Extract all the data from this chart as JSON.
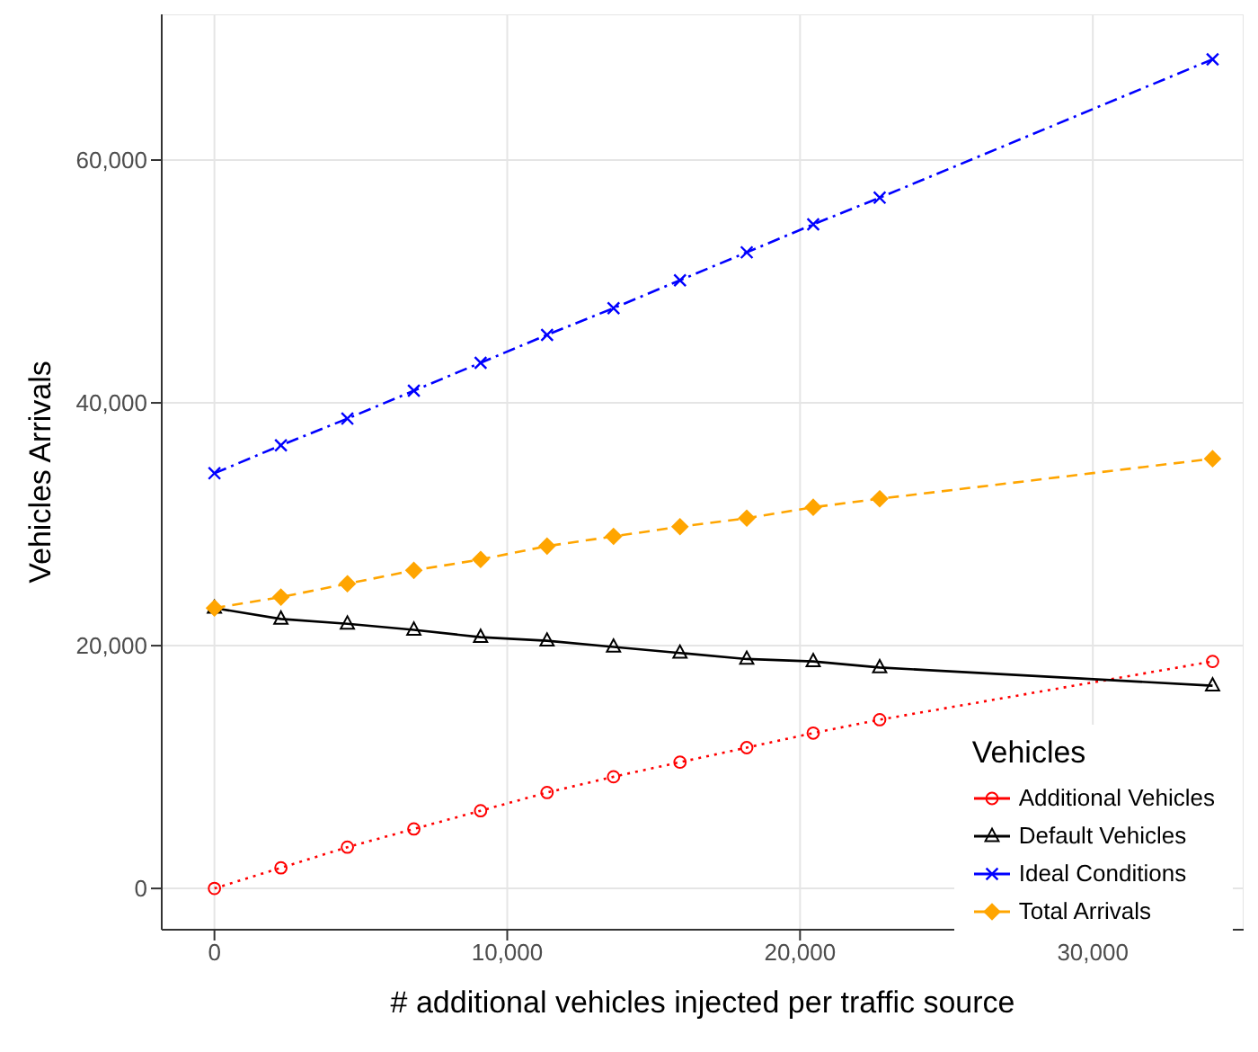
{
  "chart_data": {
    "type": "line",
    "xlabel": "# additional vehicles injected per traffic source",
    "ylabel": "Vehicles Arrivals",
    "legend_title": "Vehicles",
    "x": [
      0,
      2270,
      4540,
      6810,
      9090,
      11360,
      13630,
      15900,
      18180,
      20450,
      22720,
      34090
    ],
    "series": [
      {
        "name": "Additional Vehicles",
        "color": "#ff0000",
        "marker": "circle",
        "line_style": "dotted",
        "values": [
          0,
          1700,
          3400,
          4900,
          6400,
          7900,
          9200,
          10400,
          11600,
          12800,
          13900,
          18700
        ]
      },
      {
        "name": "Default Vehicles",
        "color": "#000000",
        "marker": "triangle",
        "line_style": "solid",
        "values": [
          23100,
          22200,
          21800,
          21300,
          20700,
          20400,
          19900,
          19400,
          18900,
          18700,
          18200,
          16700
        ]
      },
      {
        "name": "Ideal Conditions",
        "color": "#0000ff",
        "marker": "cross",
        "line_style": "dashdot",
        "values": [
          34200,
          36500,
          38700,
          41000,
          43300,
          45600,
          47800,
          50100,
          52400,
          54700,
          56900,
          68300
        ]
      },
      {
        "name": "Total Arrivals",
        "color": "#ffa500",
        "marker": "diamond",
        "line_style": "dashed",
        "values": [
          23100,
          24000,
          25100,
          26200,
          27100,
          28200,
          29000,
          29800,
          30500,
          31400,
          32100,
          35400
        ]
      }
    ],
    "xlim": [
      -1800,
      35150
    ],
    "xticks": [
      {
        "value": 0,
        "label": "0"
      },
      {
        "value": 10000,
        "label": "10,000"
      },
      {
        "value": 20000,
        "label": "20,000"
      },
      {
        "value": 30000,
        "label": "30,000"
      }
    ],
    "ylim": [
      -3400,
      72000
    ],
    "yticks": [
      {
        "value": 0,
        "label": "0"
      },
      {
        "value": 20000,
        "label": "20,000"
      },
      {
        "value": 40000,
        "label": "40,000"
      },
      {
        "value": 60000,
        "label": "60,000"
      }
    ],
    "grid": true,
    "legend": "bottom right"
  }
}
